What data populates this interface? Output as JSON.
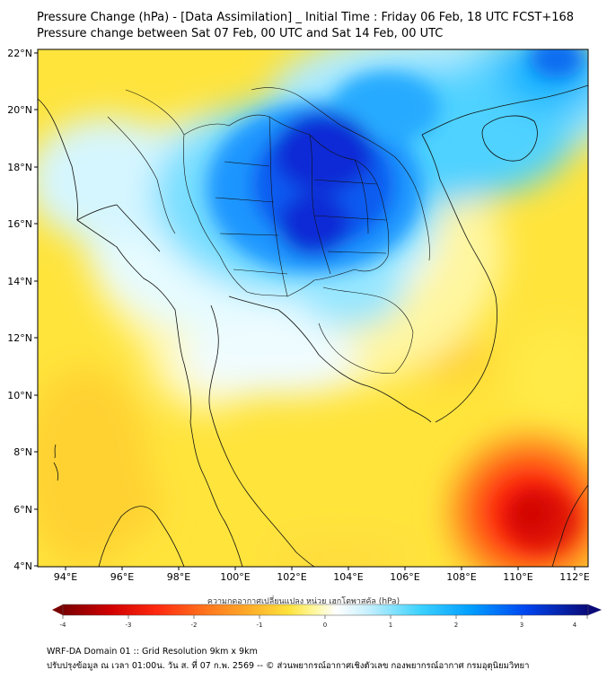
{
  "title_line1": "Pressure Change (hPa) - [Data Assimilation] _ Initial Time : Friday 06 Feb, 18 UTC FCST+168",
  "title_line2": "Pressure change between Sat 07 Feb, 00 UTC and Sat 14 Feb, 00 UTC",
  "lat_labels": [
    "22°N",
    "20°N",
    "18°N",
    "16°N",
    "14°N",
    "12°N",
    "10°N",
    "8°N",
    "6°N",
    "4°N"
  ],
  "lon_labels": [
    "94°E",
    "96°E",
    "98°E",
    "100°E",
    "102°E",
    "104°E",
    "106°E",
    "108°E",
    "110°E",
    "112°E"
  ],
  "colorbar": {
    "label": "ความกดอากาศเปลี่ยนแปลง หน่วย เฮกโตพาสคัล (hPa)",
    "ticks": [
      "-4",
      "-3",
      "-2",
      "-1",
      "0",
      "1",
      "2",
      "3",
      "4"
    ],
    "range": [
      -4,
      4
    ],
    "colors": [
      "#7a0000",
      "#e00000",
      "#ff5a1e",
      "#ffb02a",
      "#ffe23c",
      "#fff8a0",
      "#ffffff",
      "#c8f0ff",
      "#3cd2ff",
      "#009cff",
      "#0046f0",
      "#0a0a78"
    ]
  },
  "footer_line1": "WRF-DA Domain 01 :: Grid Resolution 9km x 9km",
  "footer_line2": "ปรับปรุงข้อมูล ณ เวลา 01:00น. วัน ส. ที่ 07 ก.พ. 2569 -- © ส่วนพยากรณ์อากาศเชิงตัวเลข กองพยากรณ์อากาศ กรมอุตุนิยมวิทยา",
  "map": {
    "field": "pressure-change",
    "min_center": "-4 hPa near 110.5°E 5.5°N",
    "max_center": "+4 hPa near 103°E 17°N"
  }
}
